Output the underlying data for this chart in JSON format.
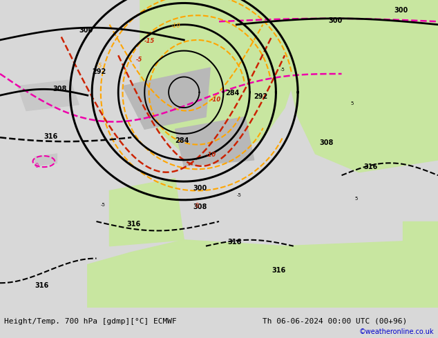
{
  "title_left": "Height/Temp. 700 hPa [gdmp][°C] ECMWF",
  "title_right": "Th 06-06-2024 00:00 UTC (00+96)",
  "watermark": "©weatheronline.co.uk",
  "fig_width": 6.34,
  "fig_height": 4.9,
  "dpi": 100,
  "bg_light_gray": "#d8d8d8",
  "land_green": "#c8e6a0",
  "land_gray": "#b8b8b8",
  "bottom_bar": "#f0f0f0",
  "watermark_color": "#0000cc",
  "label_fs": 8,
  "small_fs": 7,
  "tiny_fs": 6
}
